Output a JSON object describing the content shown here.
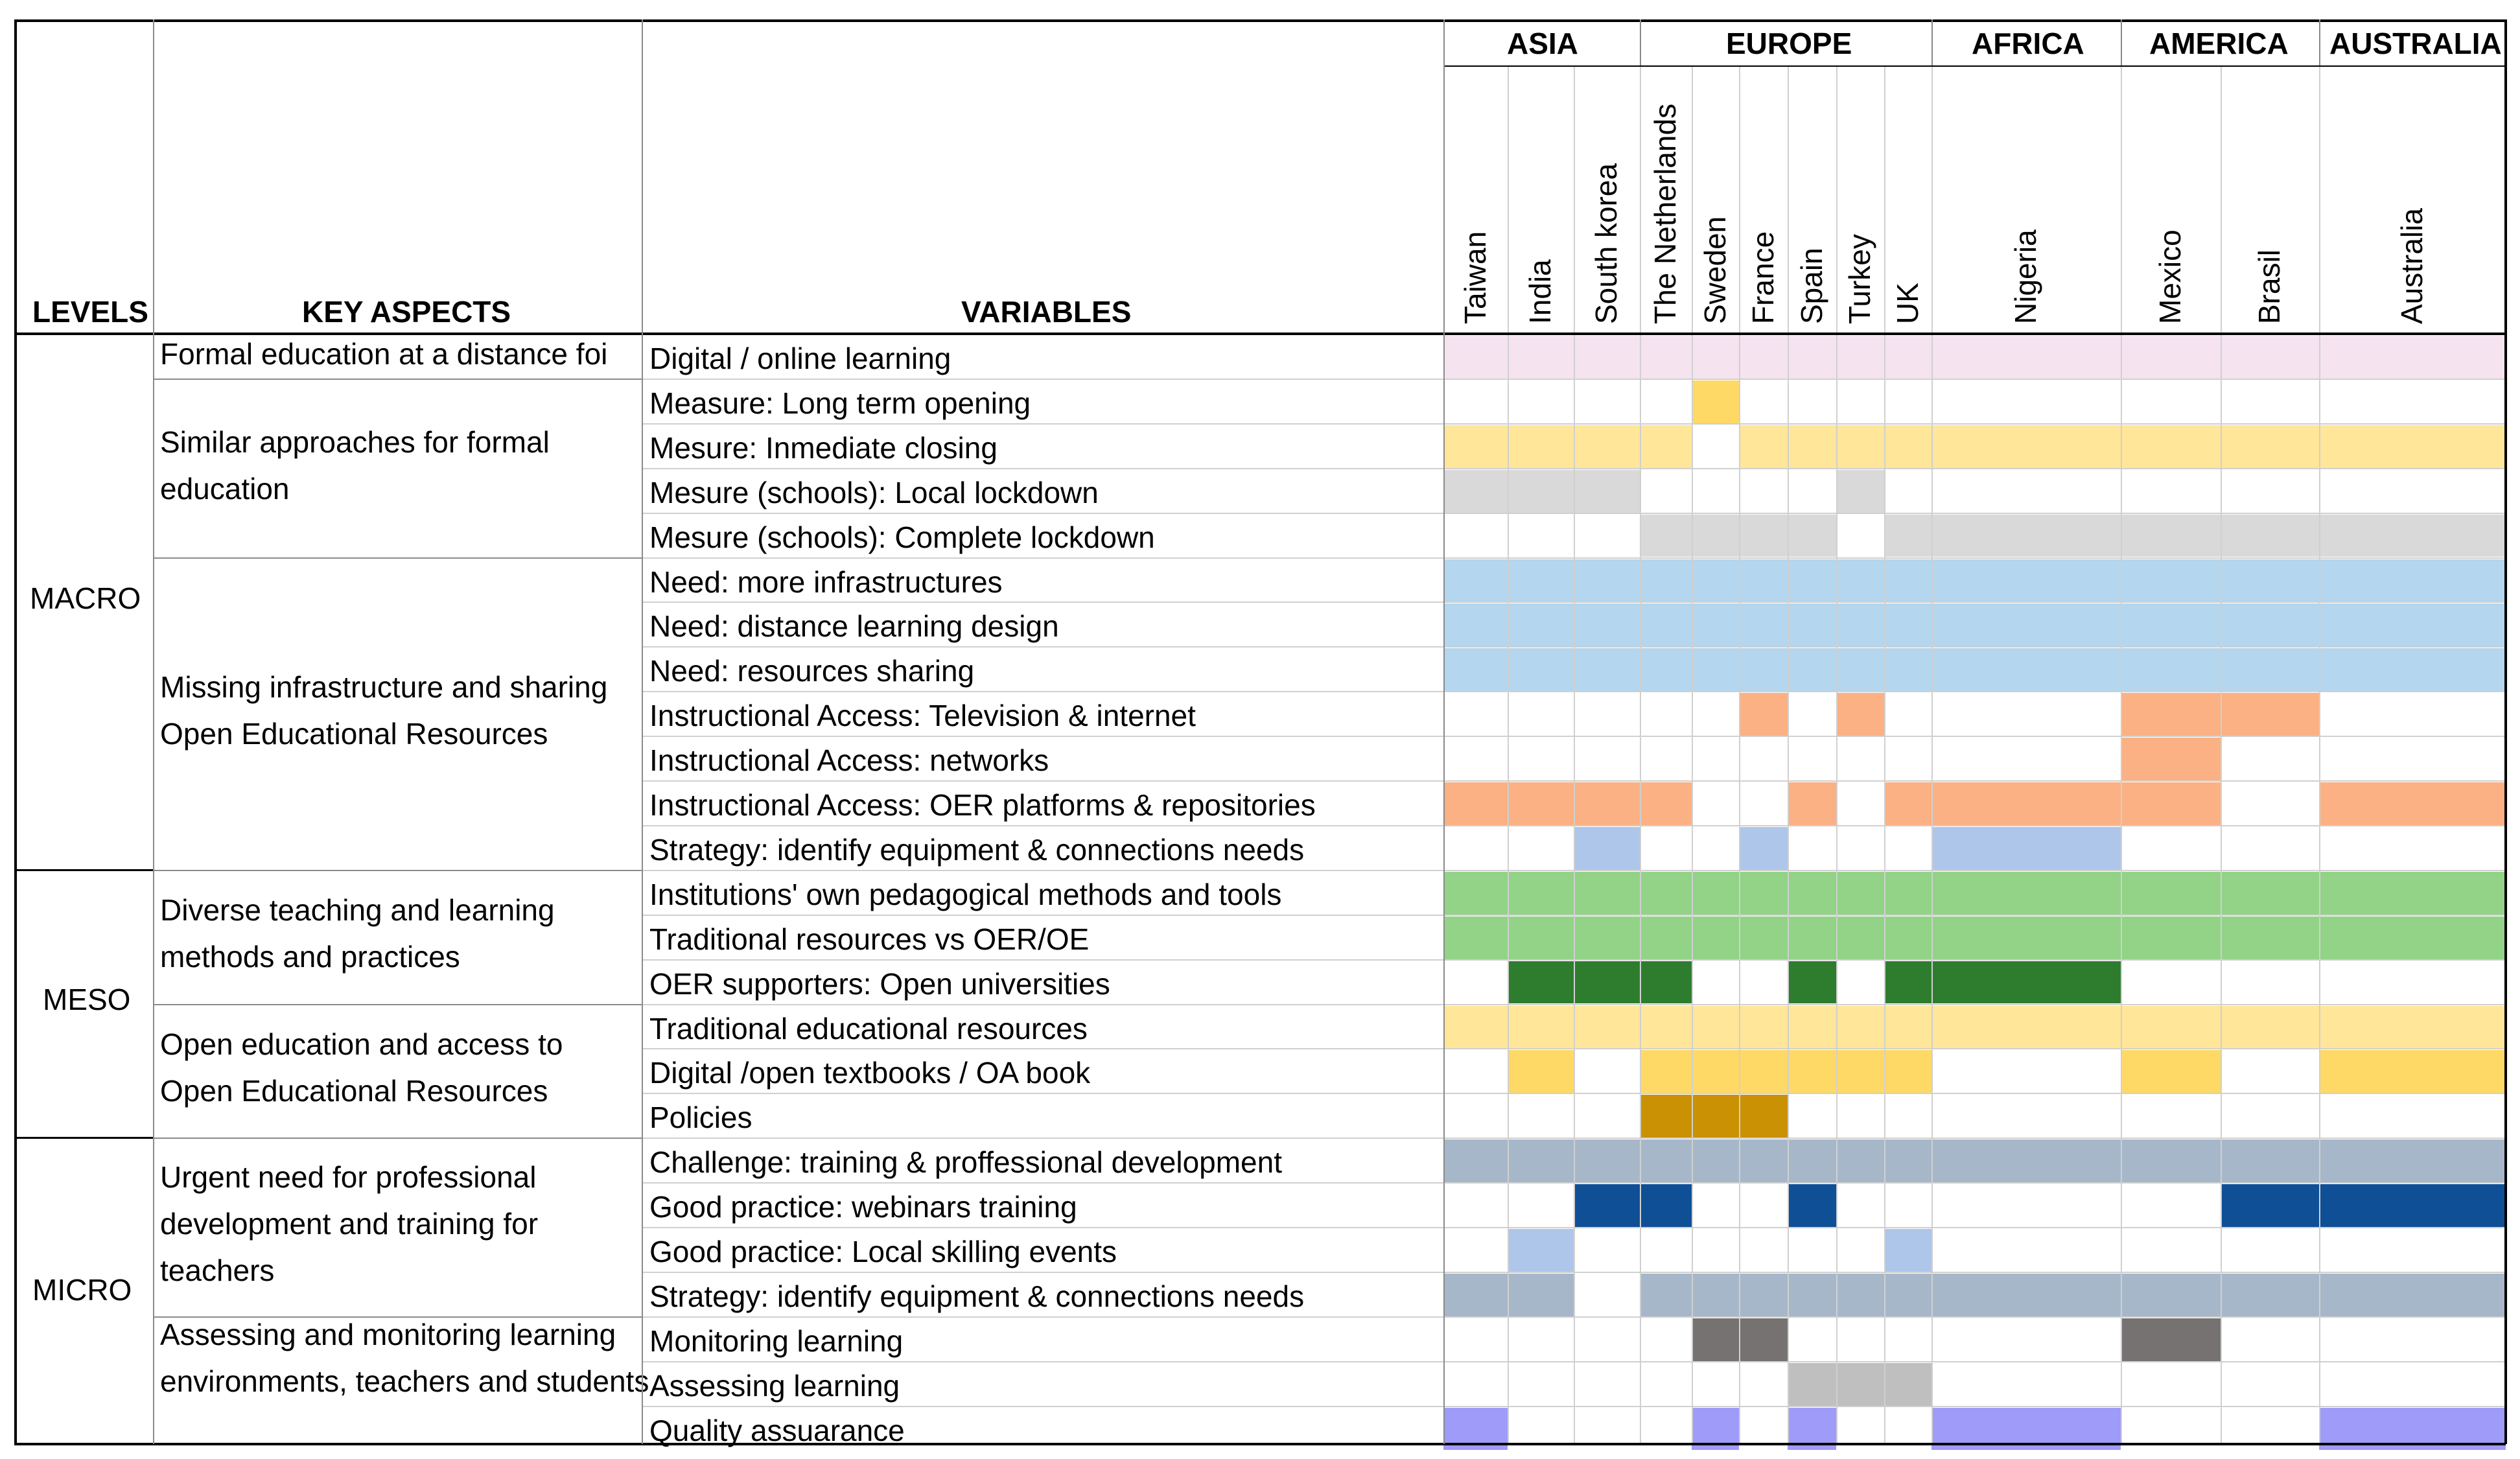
{
  "header": {
    "levels_label": "LEVELS",
    "key_aspects_label": "KEY ASPECTS",
    "variables_label": "VARIABLES",
    "regions": [
      "ASIA",
      "EUROPE",
      "AFRICA",
      "AMERICA",
      "AUSTRALIA"
    ],
    "countries": [
      "Taiwan",
      "India",
      "South korea",
      "The Netherlands",
      "Sweden",
      "France",
      "Spain",
      "Turkey",
      "UK",
      "Nigeria",
      "Mexico",
      "Brasil",
      "Australia"
    ]
  },
  "levels": [
    "MACRO",
    "MESO",
    "MICRO"
  ],
  "key_aspects": [
    "Formal education at a distance foi",
    "Similar approaches for formal education",
    "Missing infrastructure and sharing Open Educational Resources",
    "Diverse teaching and learning methods and practices",
    "Open education and access to Open Educational Resources",
    "Urgent need for professional development and training for teachers",
    "Assessing and monitoring learning environments, teachers and students"
  ],
  "rows": [
    {
      "variable": "Digital / online learning",
      "color": "#f5e3f0",
      "cols": [
        0,
        1,
        2,
        3,
        4,
        5,
        6,
        7,
        8,
        9,
        10,
        11,
        12
      ]
    },
    {
      "variable": "Measure: Long term opening",
      "color": "#ffd966",
      "cols": [
        4
      ]
    },
    {
      "variable": "Mesure: Inmediate closing",
      "color": "#ffe699",
      "cols": [
        0,
        1,
        2,
        3,
        5,
        6,
        7,
        8,
        9,
        10,
        11,
        12
      ]
    },
    {
      "variable": "Mesure (schools): Local lockdown",
      "color": "#d9d9d9",
      "cols": [
        0,
        1,
        2,
        7
      ]
    },
    {
      "variable": "Mesure (schools): Complete lockdown",
      "color": "#d9d9d9",
      "cols": [
        3,
        4,
        5,
        6,
        8,
        9,
        10,
        11,
        12
      ]
    },
    {
      "variable": "Need: more infrastructures",
      "color": "#b4d6ee",
      "cols": [
        0,
        1,
        2,
        3,
        4,
        5,
        6,
        7,
        8,
        9,
        10,
        11,
        12
      ]
    },
    {
      "variable": "Need: distance learning design",
      "color": "#b4d6ee",
      "cols": [
        0,
        1,
        2,
        3,
        4,
        5,
        6,
        7,
        8,
        9,
        10,
        11,
        12
      ]
    },
    {
      "variable": "Need: resources sharing",
      "color": "#b4d6ee",
      "cols": [
        0,
        1,
        2,
        3,
        4,
        5,
        6,
        7,
        8,
        9,
        10,
        11,
        12
      ]
    },
    {
      "variable": "Instructional Access: Television & internet",
      "color": "#fbb183",
      "cols": [
        5,
        7,
        10,
        11
      ]
    },
    {
      "variable": "Instructional Access:  networks",
      "color": "#fbb183",
      "cols": [
        10
      ]
    },
    {
      "variable": "Instructional Access: OER platforms & repositories",
      "color": "#fbb183",
      "cols": [
        0,
        1,
        2,
        3,
        6,
        8,
        9,
        10,
        12
      ]
    },
    {
      "variable": "Strategy: identify equipment & connections needs",
      "color": "#aec6ea",
      "cols": [
        2,
        5,
        9
      ]
    },
    {
      "variable": "Institutions' own pedagogical methods and tools",
      "color": "#92d387",
      "cols": [
        0,
        1,
        2,
        3,
        4,
        5,
        6,
        7,
        8,
        9,
        10,
        11,
        12
      ]
    },
    {
      "variable": "Traditional resources vs OER/OE",
      "color": "#92d387",
      "cols": [
        0,
        1,
        2,
        3,
        4,
        5,
        6,
        7,
        8,
        9,
        10,
        11,
        12
      ]
    },
    {
      "variable": "OER supporters: Open universities",
      "color": "#2e7d2e",
      "cols": [
        1,
        2,
        3,
        6,
        8,
        9
      ]
    },
    {
      "variable": "Traditional educational resources",
      "color": "#ffe699",
      "cols": [
        0,
        1,
        2,
        3,
        4,
        5,
        6,
        7,
        8,
        9,
        10,
        11,
        12
      ]
    },
    {
      "variable": "Digital /open textbooks / OA book",
      "color": "#ffd966",
      "cols": [
        1,
        3,
        4,
        5,
        6,
        7,
        8,
        10,
        12
      ]
    },
    {
      "variable": "Policies",
      "color": "#c99103",
      "cols": [
        3,
        4,
        5
      ]
    },
    {
      "variable": "Challenge: training & proffessional development",
      "color": "#a7b7ca",
      "cols": [
        0,
        1,
        2,
        3,
        4,
        5,
        6,
        7,
        8,
        9,
        10,
        11,
        12
      ]
    },
    {
      "variable": "Good practice: webinars training",
      "color": "#0f4f96",
      "cols": [
        2,
        3,
        6,
        11,
        12
      ]
    },
    {
      "variable": "Good practice: Local skilling events",
      "color": "#aec6ea",
      "cols": [
        1,
        8
      ]
    },
    {
      "variable": "Strategy: identify equipment & connections needs",
      "color": "#a7b7ca",
      "cols": [
        0,
        1,
        3,
        4,
        5,
        6,
        7,
        8,
        9,
        10,
        11,
        12
      ]
    },
    {
      "variable": "Monitoring learning",
      "color": "#777272",
      "cols": [
        4,
        5,
        10
      ]
    },
    {
      "variable": "Assessing learning",
      "color": "#bfbfbf",
      "cols": [
        6,
        7,
        8
      ]
    },
    {
      "variable": "Quality assuarance",
      "color": "#9f9bf8",
      "cols": [
        0,
        4,
        6,
        9,
        12
      ]
    }
  ]
}
